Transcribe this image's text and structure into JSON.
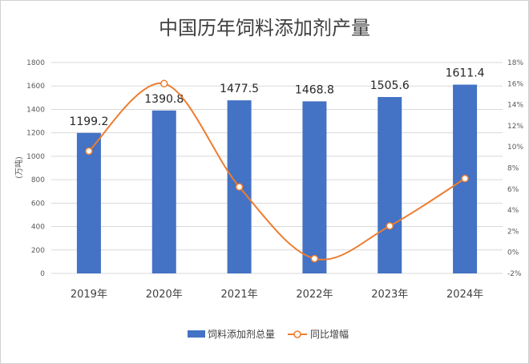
{
  "chart_data": {
    "type": "bar",
    "title": "中国历年饲料添加剂产量",
    "categories": [
      "2019年",
      "2020年",
      "2021年",
      "2022年",
      "2023年",
      "2024年"
    ],
    "ylabel": "(万吨)",
    "ylim": [
      0,
      1800
    ],
    "yticks": [
      0,
      200,
      400,
      600,
      800,
      1000,
      1200,
      1400,
      1600,
      1800
    ],
    "y2lim": [
      -2,
      18
    ],
    "y2ticks": [
      "-2%",
      "0%",
      "2%",
      "4%",
      "6%",
      "8%",
      "10%",
      "12%",
      "14%",
      "16%",
      "18%"
    ],
    "grid": true,
    "legend_position": "bottom",
    "series": [
      {
        "name": "饲料添加剂总量",
        "type": "bar",
        "axis": "left",
        "color": "#4472c4",
        "values": [
          1199.2,
          1390.8,
          1477.5,
          1468.8,
          1505.6,
          1611.4
        ],
        "labels": [
          "1199.2",
          "1390.8",
          "1477.5",
          "1468.8",
          "1505.6",
          "1611.4"
        ]
      },
      {
        "name": "同比增幅",
        "type": "line",
        "axis": "right",
        "color": "#ed7d31",
        "smooth": true,
        "values": [
          9.6,
          16.0,
          6.2,
          -0.6,
          2.5,
          7.0
        ]
      }
    ]
  }
}
